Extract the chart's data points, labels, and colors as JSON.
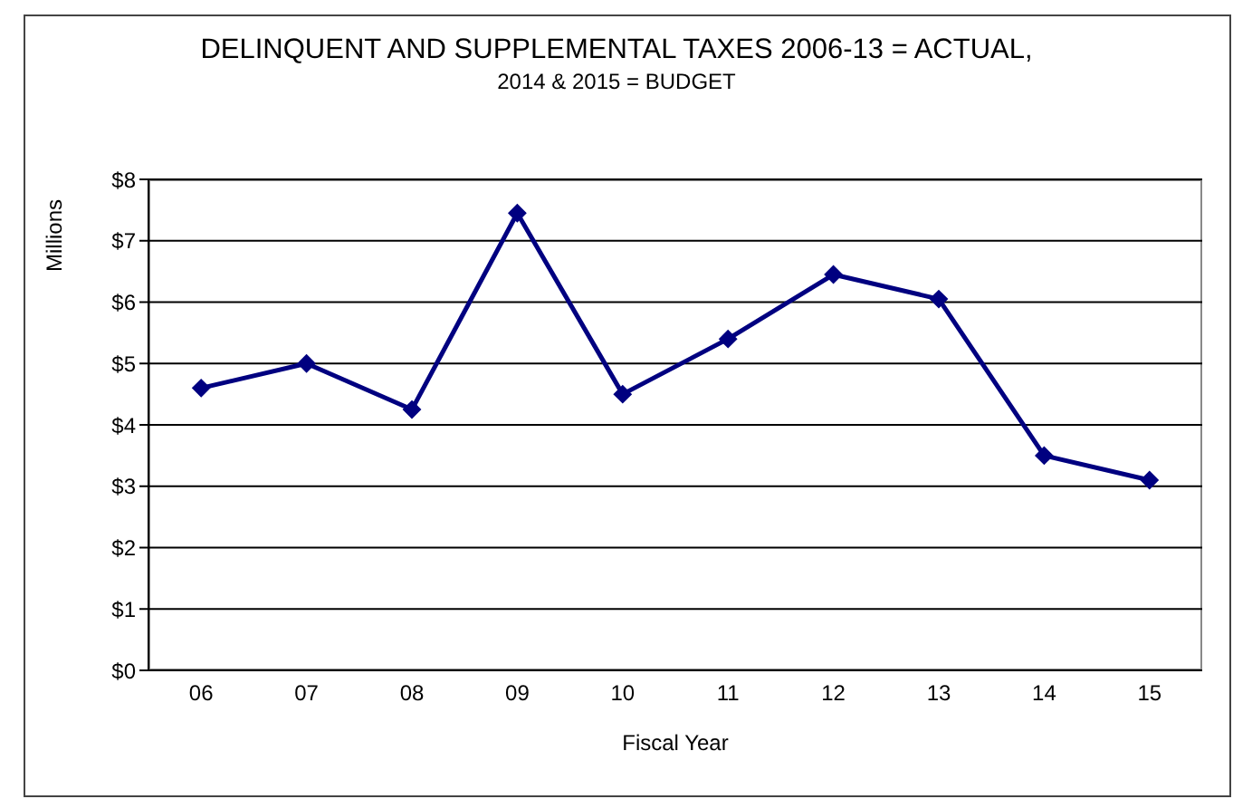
{
  "chart_data": {
    "type": "line",
    "title": "DELINQUENT AND SUPPLEMENTAL TAXES 2006-13 = ACTUAL,",
    "subtitle": "2014 & 2015 = BUDGET",
    "xlabel": "Fiscal Year",
    "ylabel": "Millions",
    "categories": [
      "06",
      "07",
      "08",
      "09",
      "10",
      "11",
      "12",
      "13",
      "14",
      "15"
    ],
    "series": [
      {
        "color": "#000080",
        "values": [
          4.6,
          5.0,
          4.25,
          7.45,
          4.5,
          5.4,
          6.45,
          6.05,
          3.5,
          3.1
        ]
      }
    ],
    "ylim": [
      0,
      8
    ],
    "yticks": [
      {
        "value": 0,
        "label": "$0"
      },
      {
        "value": 1,
        "label": "$1"
      },
      {
        "value": 2,
        "label": "$2"
      },
      {
        "value": 3,
        "label": "$3"
      },
      {
        "value": 4,
        "label": "$4"
      },
      {
        "value": 5,
        "label": "$5"
      },
      {
        "value": 6,
        "label": "$6"
      },
      {
        "value": 7,
        "label": "$7"
      },
      {
        "value": 8,
        "label": "$8"
      }
    ],
    "grid": "y",
    "marker": "diamond",
    "line_style": "solid"
  }
}
